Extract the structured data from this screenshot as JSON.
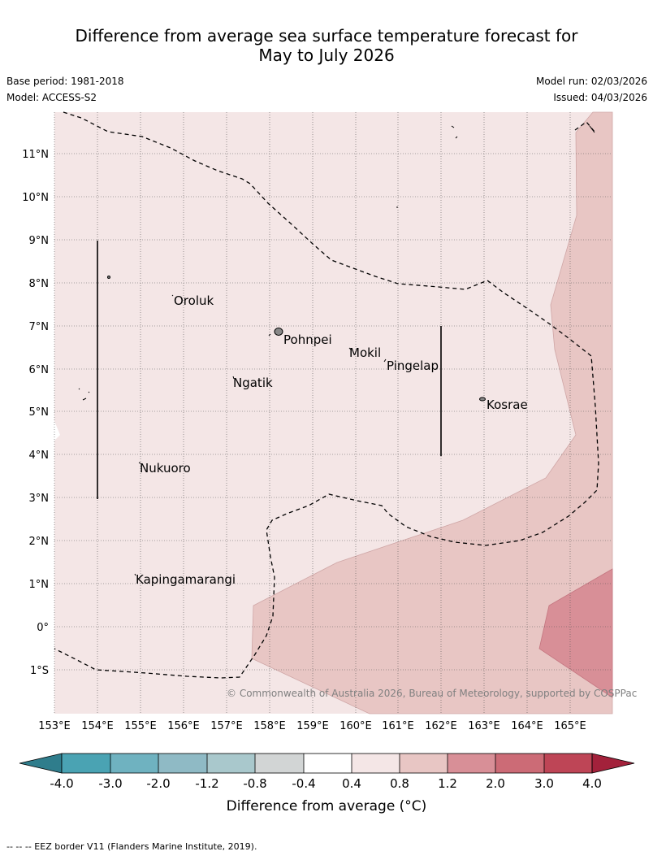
{
  "title_line1": "Difference from average sea surface temperature forecast for",
  "title_line2": "May to July 2026",
  "base_period": "Base period: 1981-2018",
  "model": "Model: ACCESS-S2",
  "model_run": "Model run: 02/03/2026",
  "issued": "Issued: 04/03/2026",
  "lat_labels": [
    "11°N",
    "10°N",
    "9°N",
    "8°N",
    "7°N",
    "6°N",
    "5°N",
    "4°N",
    "3°N",
    "2°N",
    "1°N",
    "0°",
    "1°S"
  ],
  "lon_labels": [
    "153°E",
    "154°E",
    "155°E",
    "156°E",
    "157°E",
    "158°E",
    "159°E",
    "160°E",
    "161°E",
    "162°E",
    "163°E",
    "164°E",
    "165°E"
  ],
  "places": [
    "Oroluk",
    "Pohnpei",
    "Mokil",
    "Pingelap",
    "Ngatik",
    "Kosrae",
    "Nukuoro",
    "Kapingamarangi"
  ],
  "copyright": "© Commonwealth of Australia 2026, Bureau of Meteorology, supported by COSPPac",
  "colorbar": {
    "ticks": [
      "-4.0",
      "-3.0",
      "-2.0",
      "-1.2",
      "-0.8",
      "-0.4",
      "0.4",
      "0.8",
      "1.2",
      "2.0",
      "3.0",
      "4.0"
    ],
    "colors": [
      "#2f7d8c",
      "#4aa3b3",
      "#6fb2c0",
      "#8fbac5",
      "#a9c8cc",
      "#d2d5d5",
      "#ffffff",
      "#f4e6e6",
      "#e8c6c4",
      "#d88f97",
      "#cc6b76",
      "#be4556",
      "#a3213b"
    ],
    "label": "Difference from average (°C)"
  },
  "footer": "-- -- -- EEZ border V11 (Flanders Marine Institute, 2019)."
}
